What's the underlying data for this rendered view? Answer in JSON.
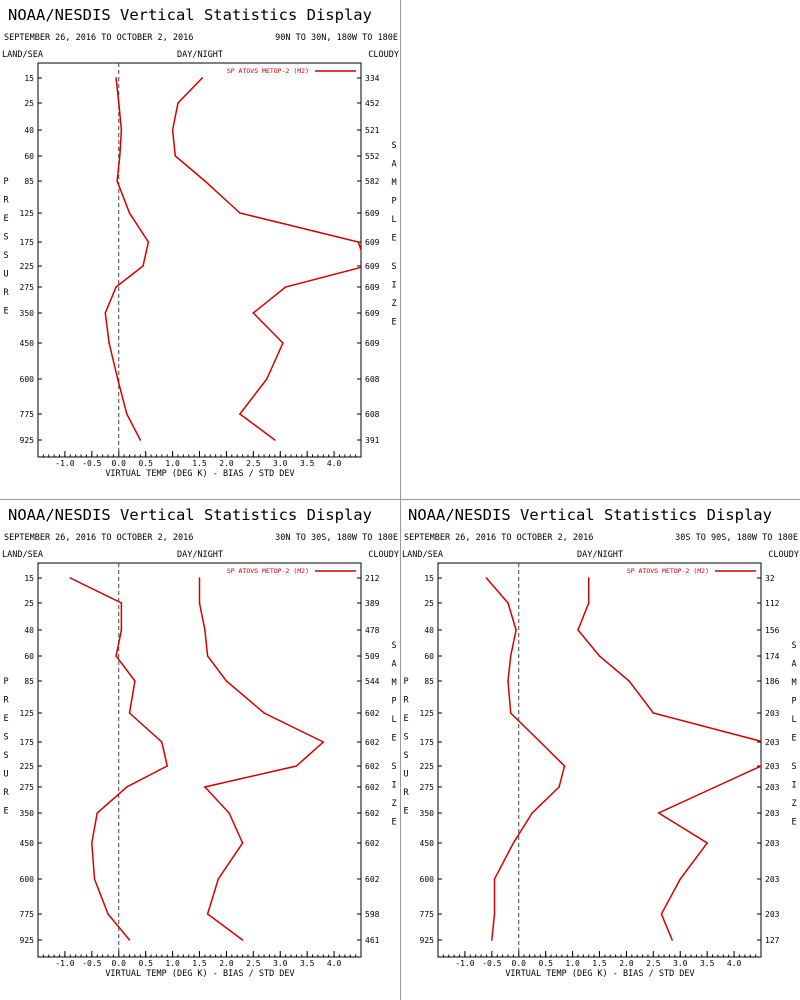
{
  "chart_data": [
    {
      "type": "line",
      "title": "NOAA/NESDIS Vertical Statistics Display",
      "date_range": "SEPTEMBER 26, 2016 TO OCTOBER 2, 2016",
      "region": "90N TO 30N, 180W TO 180E",
      "top_left": "LAND/SEA",
      "top_center": "DAY/NIGHT",
      "top_right": "CLOUDY",
      "ylabel": "PRESSURE",
      "y2label": "SAMPLE SIZE",
      "xlabel": "VIRTUAL TEMP (DEG K) - BIAS / STD DEV",
      "xlim": [
        -1.5,
        4.5
      ],
      "xticks": [
        "-1.0",
        "-0.5",
        "0.0",
        "0.5",
        "1.0",
        "1.5",
        "2.0",
        "2.5",
        "3.0",
        "3.5",
        "4.0"
      ],
      "pressure_levels": [
        "15",
        "25",
        "40",
        "60",
        "85",
        "125",
        "175",
        "225",
        "275",
        "350",
        "450",
        "600",
        "775",
        "925"
      ],
      "sample_sizes": [
        "334",
        "452",
        "521",
        "552",
        "582",
        "609",
        "609",
        "609",
        "609",
        "609",
        "609",
        "608",
        "608",
        "391"
      ],
      "legend": "SP ATOVS METOP-2 (M2)",
      "legend_position": "top-right",
      "bias_zero_line": "dashed",
      "series": [
        {
          "role": "bias",
          "values": [
            -0.05,
            0.0,
            0.05,
            0.02,
            -0.03,
            0.2,
            0.55,
            0.45,
            -0.05,
            -0.25,
            -0.18,
            -0.02,
            0.15,
            0.4
          ]
        },
        {
          "role": "std_dev",
          "values": [
            1.55,
            1.1,
            1.0,
            1.05,
            1.6,
            2.25,
            4.45,
            4.6,
            3.1,
            2.5,
            3.05,
            2.75,
            2.25,
            2.9
          ]
        }
      ]
    },
    {
      "type": "line",
      "title": "NOAA/NESDIS Vertical Statistics Display",
      "date_range": "SEPTEMBER 26, 2016 TO OCTOBER 2, 2016",
      "region": "30N TO 30S, 180W TO 180E",
      "top_left": "LAND/SEA",
      "top_center": "DAY/NIGHT",
      "top_right": "CLOUDY",
      "ylabel": "PRESSURE",
      "y2label": "SAMPLE SIZE",
      "xlabel": "VIRTUAL TEMP (DEG K) - BIAS / STD DEV",
      "xlim": [
        -1.5,
        4.5
      ],
      "xticks": [
        "-1.0",
        "-0.5",
        "0.0",
        "0.5",
        "1.0",
        "1.5",
        "2.0",
        "2.5",
        "3.0",
        "3.5",
        "4.0"
      ],
      "pressure_levels": [
        "15",
        "25",
        "40",
        "60",
        "85",
        "125",
        "175",
        "225",
        "275",
        "350",
        "450",
        "600",
        "775",
        "925"
      ],
      "sample_sizes": [
        "212",
        "389",
        "478",
        "509",
        "544",
        "602",
        "602",
        "602",
        "602",
        "602",
        "602",
        "602",
        "598",
        "461"
      ],
      "legend": "SP ATOVS METOP-2 (M2)",
      "legend_position": "top-right",
      "bias_zero_line": "dashed",
      "series": [
        {
          "role": "bias",
          "values": [
            -0.9,
            0.05,
            0.05,
            -0.05,
            0.3,
            0.2,
            0.8,
            0.9,
            0.15,
            -0.4,
            -0.5,
            -0.45,
            -0.2,
            0.2
          ]
        },
        {
          "role": "std_dev",
          "values": [
            1.5,
            1.5,
            1.6,
            1.65,
            2.0,
            2.7,
            3.8,
            3.3,
            1.6,
            2.05,
            2.3,
            1.85,
            1.65,
            2.3
          ]
        }
      ]
    },
    {
      "type": "line",
      "title": "NOAA/NESDIS Vertical Statistics Display",
      "date_range": "SEPTEMBER 26, 2016 TO OCTOBER 2, 2016",
      "region": "30S TO 90S, 180W TO 180E",
      "top_left": "LAND/SEA",
      "top_center": "DAY/NIGHT",
      "top_right": "CLOUDY",
      "ylabel": "PRESSURE",
      "y2label": "SAMPLE SIZE",
      "xlabel": "VIRTUAL TEMP (DEG K) - BIAS / STD DEV",
      "xlim": [
        -1.5,
        4.5
      ],
      "xticks": [
        "-1.0",
        "-0.5",
        "0.0",
        "0.5",
        "1.0",
        "1.5",
        "2.0",
        "2.5",
        "3.0",
        "3.5",
        "4.0"
      ],
      "pressure_levels": [
        "15",
        "25",
        "40",
        "60",
        "85",
        "125",
        "175",
        "225",
        "275",
        "350",
        "450",
        "600",
        "775",
        "925"
      ],
      "sample_sizes": [
        "32",
        "112",
        "156",
        "174",
        "186",
        "203",
        "203",
        "203",
        "203",
        "203",
        "203",
        "203",
        "203",
        "127"
      ],
      "legend": "SP ATOVS METOP-2 (M2)",
      "legend_position": "top-right",
      "bias_zero_line": "dashed",
      "series": [
        {
          "role": "bias",
          "values": [
            -0.6,
            -0.2,
            -0.05,
            -0.15,
            -0.2,
            -0.15,
            0.4,
            0.85,
            0.75,
            0.25,
            -0.1,
            -0.45,
            -0.45,
            -0.5
          ]
        },
        {
          "role": "std_dev",
          "values": [
            1.3,
            1.3,
            1.1,
            1.5,
            2.05,
            2.5,
            4.55,
            4.5,
            3.65,
            2.6,
            3.5,
            3.0,
            2.65,
            2.85
          ]
        }
      ]
    }
  ]
}
